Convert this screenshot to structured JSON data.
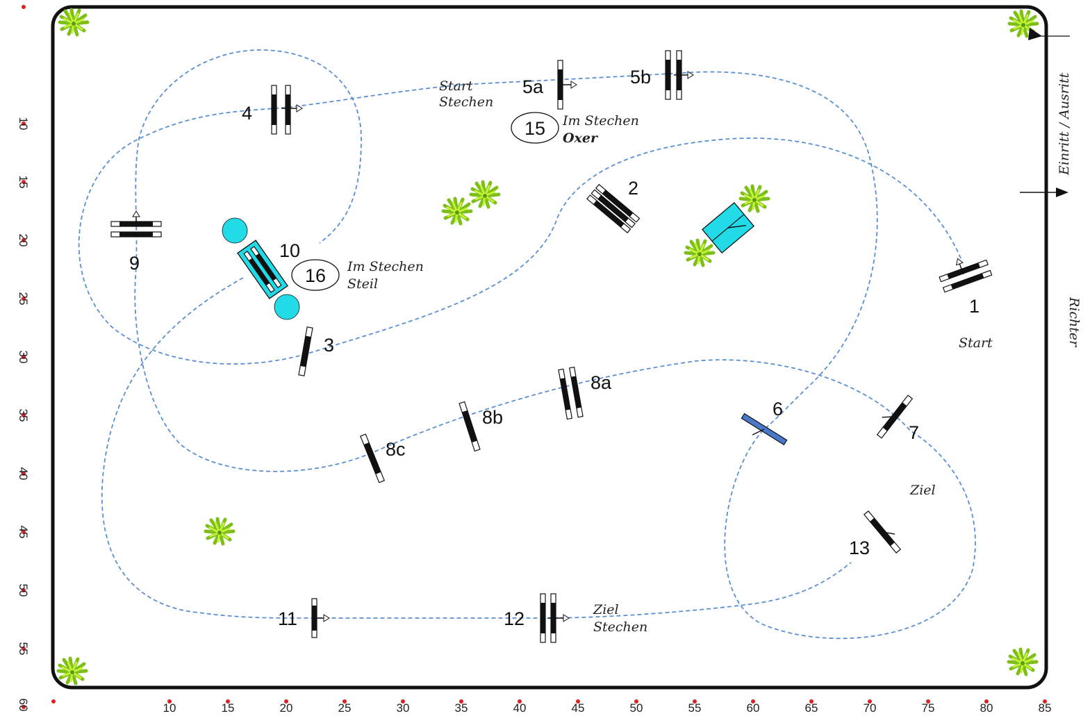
{
  "colors": {
    "path": "#5b8fd4",
    "water": "#22dbe6",
    "water_jump_blue": "#4a78c8",
    "marker_dot": "#e02020",
    "plant": "#9fe022"
  },
  "labels": {
    "entry_exit": "Einritt / Ausritt",
    "judge": "Richter",
    "start": "Start",
    "finish": "Ziel",
    "start_jumpoff": [
      "Start",
      "Stechen"
    ],
    "finish_jumpoff": [
      "Ziel",
      "Stechen"
    ],
    "jump15_note": [
      "Im Stechen",
      "Oxer"
    ],
    "jump16_note": [
      "Im Stechen",
      "Steil"
    ]
  },
  "circled": {
    "c15": "15",
    "c16": "16"
  },
  "jumps": {
    "j1": "1",
    "j2": "2",
    "j3": "3",
    "j4": "4",
    "j5a": "5a",
    "j5b": "5b",
    "j6": "6",
    "j7": "7",
    "j8a": "8a",
    "j8b": "8b",
    "j8c": "8c",
    "j9": "9",
    "j10": "10",
    "j11": "11",
    "j12": "12",
    "j13": "13"
  },
  "axis": {
    "x_ticks": [
      "10",
      "15",
      "20",
      "25",
      "30",
      "35",
      "40",
      "45",
      "50",
      "55",
      "60",
      "65",
      "70",
      "75",
      "80",
      "85"
    ],
    "y_ticks": [
      "10",
      "15",
      "20",
      "25",
      "30",
      "35",
      "40",
      "45",
      "50",
      "55",
      "60"
    ]
  }
}
